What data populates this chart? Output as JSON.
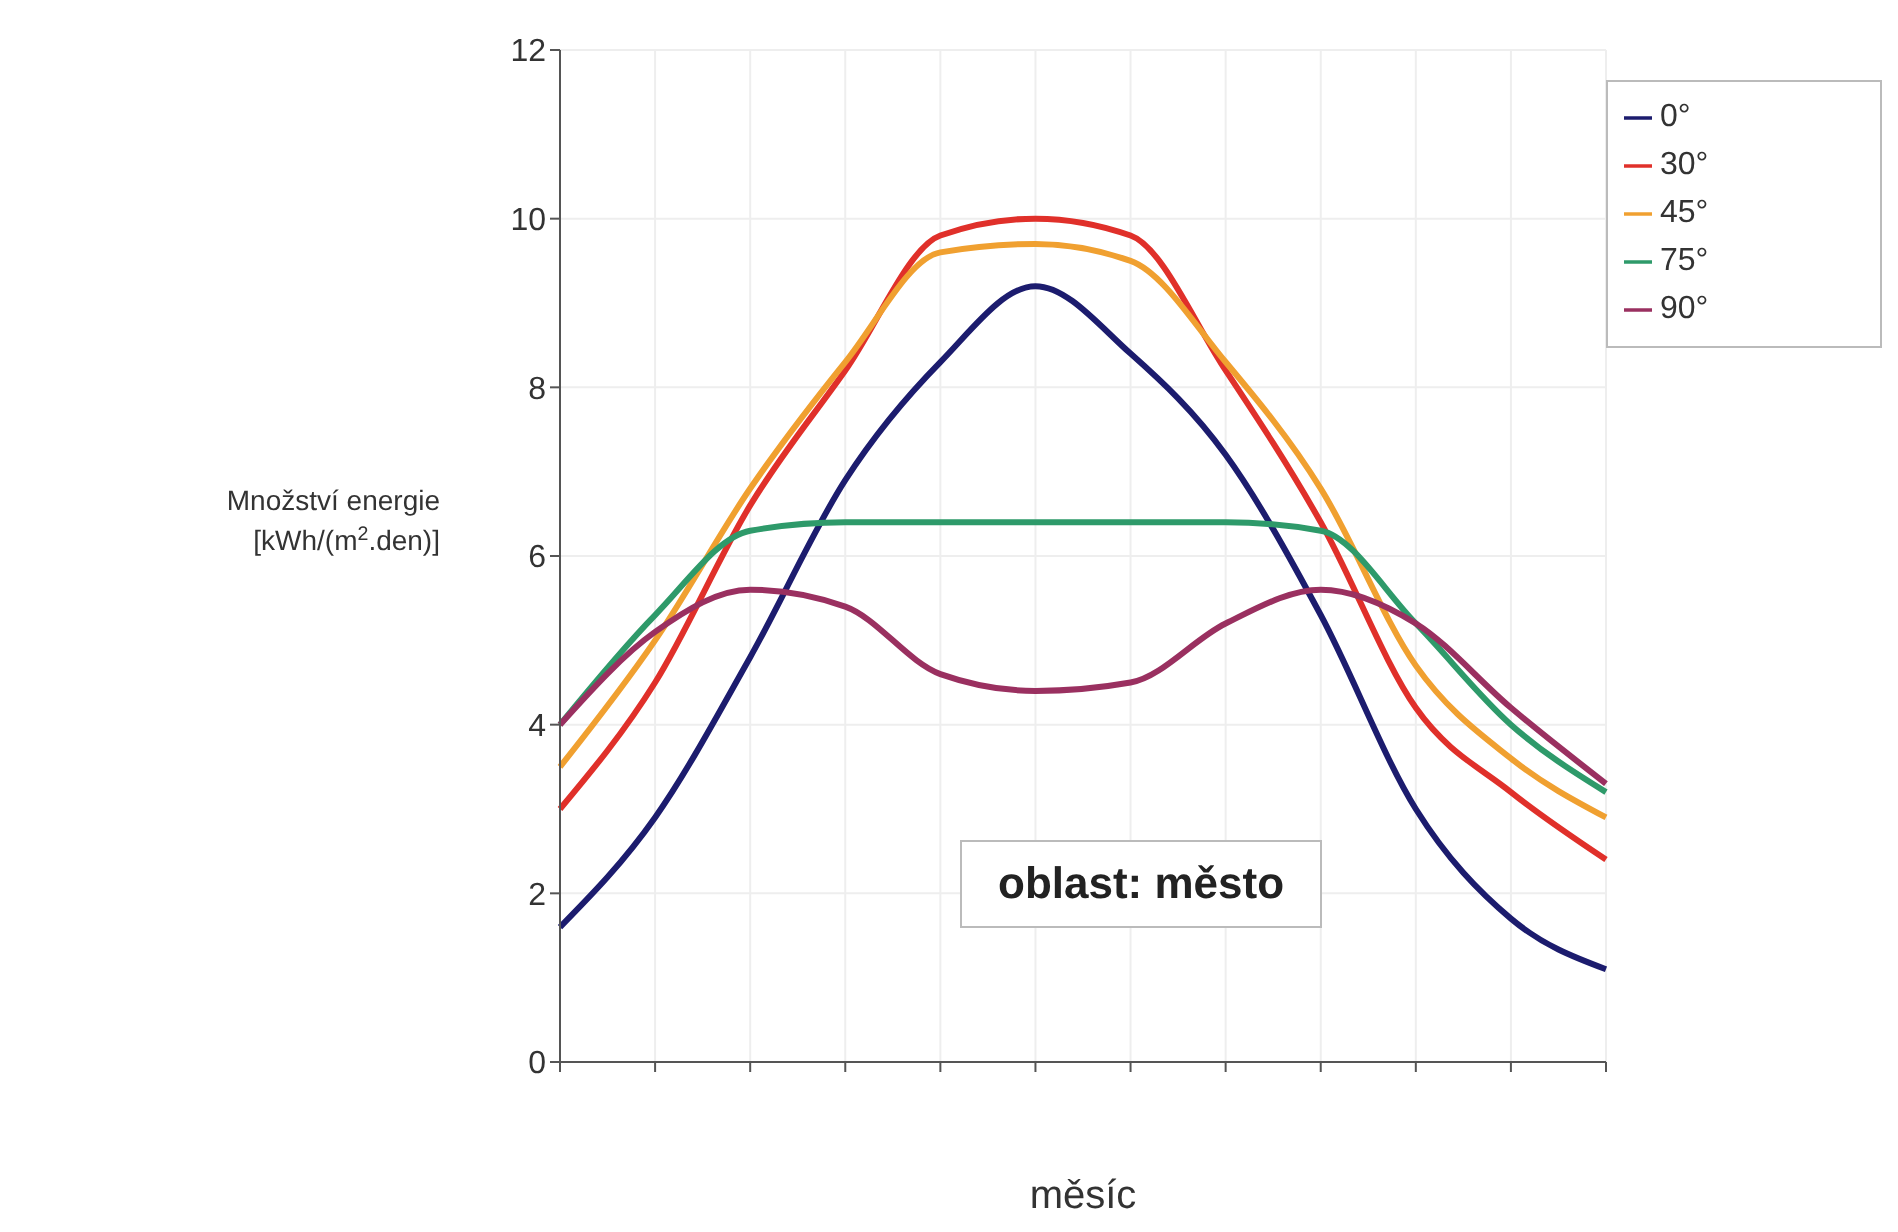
{
  "chart_data": {
    "type": "line",
    "xlabel": "měsíc",
    "ylabel": "Množství energie [kWh/(m$^{2}$.den)]",
    "categories": [
      null,
      null,
      null,
      null,
      null,
      null,
      null,
      null,
      null,
      null,
      null,
      null
    ],
    "series": [
      {
        "name": "0°",
        "color": "#1c1c6e",
        "values": [
          1.6,
          2.9,
          4.8,
          6.9,
          8.3,
          9.2,
          8.4,
          7.2,
          5.3,
          3.0,
          1.7,
          1.1
        ]
      },
      {
        "name": "30°",
        "color": "#e0302a",
        "values": [
          3.0,
          4.5,
          6.6,
          8.2,
          9.8,
          10.0,
          9.8,
          8.2,
          6.4,
          4.2,
          3.2,
          2.4
        ]
      },
      {
        "name": "45°",
        "color": "#f0a030",
        "values": [
          3.5,
          5.0,
          6.8,
          8.3,
          9.6,
          9.7,
          9.5,
          8.3,
          6.8,
          4.7,
          3.6,
          2.9
        ]
      },
      {
        "name": "75°",
        "color": "#2e9a6a",
        "values": [
          4.0,
          5.3,
          6.3,
          6.4,
          6.4,
          6.4,
          6.4,
          6.4,
          6.3,
          5.2,
          4.0,
          3.2
        ]
      },
      {
        "name": "90°",
        "color": "#9a3060",
        "values": [
          4.0,
          5.1,
          5.6,
          5.4,
          4.6,
          4.4,
          4.5,
          5.2,
          5.6,
          5.2,
          4.2,
          3.3
        ]
      }
    ],
    "ylim": [
      0,
      12
    ],
    "yticks": [
      0,
      2,
      4,
      6,
      8,
      10,
      12
    ],
    "grid": true,
    "legend": "top right",
    "marker": "none",
    "line_style": "solid",
    "annotations": [
      "oblast: město"
    ]
  }
}
